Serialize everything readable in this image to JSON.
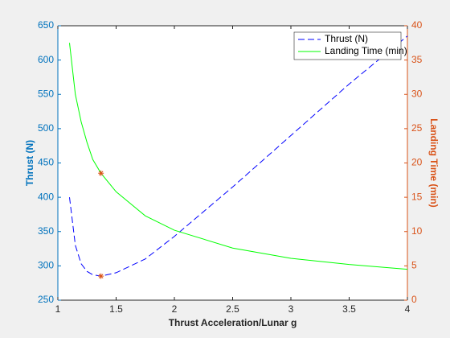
{
  "chart_data": {
    "type": "line",
    "xlabel": "Thrust Acceleration/Lunar g",
    "ylabel": "Thrust (N)",
    "y2label": "Landing Time (min)",
    "x": [
      1.1,
      1.15,
      1.2,
      1.25,
      1.3,
      1.37,
      1.5,
      1.75,
      2,
      2.5,
      3,
      3.5,
      4
    ],
    "series": [
      {
        "name": "Thrust (N)",
        "color": "#0000ff",
        "dash": true,
        "values": [
          400,
          330,
          303,
          292,
          287,
          285,
          290,
          310,
          343,
          415,
          490,
          565,
          635
        ]
      },
      {
        "name": "Landing Time (min)",
        "color": "#00ff00",
        "axis": "y2",
        "values": [
          37.5,
          30,
          26,
          23,
          20.5,
          18.5,
          15.8,
          12.3,
          10.2,
          7.6,
          6.1,
          5.2,
          4.5
        ]
      }
    ],
    "markers": [
      {
        "x": 1.37,
        "y": 285,
        "color": "#d95319"
      },
      {
        "x": 1.37,
        "y": 18.5,
        "axis": "y2",
        "color": "#d95319"
      }
    ],
    "xlim": [
      1,
      4
    ],
    "xticks": [
      1,
      1.5,
      2,
      2.5,
      3,
      3.5,
      4
    ],
    "ylim": [
      250,
      650
    ],
    "yticks": [
      250,
      300,
      350,
      400,
      450,
      500,
      550,
      600,
      650
    ],
    "y2lim": [
      0,
      40
    ],
    "y2ticks": [
      0,
      5,
      10,
      15,
      20,
      25,
      30,
      35,
      40
    ],
    "ycolor": "#0072bd",
    "y2color": "#d95319",
    "legend": "top-right"
  }
}
